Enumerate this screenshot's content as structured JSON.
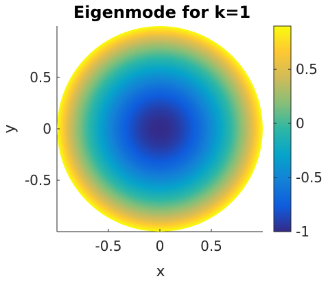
{
  "chart_data": {
    "type": "heatmap",
    "subtype": "filled-contour on unit disk",
    "title": "Eigenmode for k=1",
    "xlabel": "x",
    "ylabel": "y",
    "xlim": [
      -1,
      1
    ],
    "ylim": [
      -1,
      1
    ],
    "xticks": [
      -0.5,
      0,
      0.5
    ],
    "xtick_labels": [
      "-0.5",
      "0",
      "0.5"
    ],
    "yticks": [
      -0.5,
      0,
      0.5
    ],
    "ytick_labels": [
      "-0.5",
      "0",
      "0.5"
    ],
    "grid": false,
    "domain": "unit disk",
    "radial_profile": {
      "r": [
        0.0,
        0.1,
        0.2,
        0.3,
        0.4,
        0.5,
        0.6,
        0.7,
        0.8,
        0.9,
        1.0
      ],
      "value": [
        -1.0,
        -0.98,
        -0.91,
        -0.8,
        -0.66,
        -0.48,
        -0.27,
        -0.05,
        0.2,
        0.48,
        0.88
      ]
    },
    "colorbar": {
      "colormap": "parula",
      "range": [
        -1,
        0.9
      ],
      "ticks": [
        -1,
        -0.5,
        0,
        0.5
      ],
      "tick_labels": [
        "-1",
        "-0.5",
        "0",
        "0.5"
      ],
      "position": "right"
    },
    "colormap_stops": [
      "#352a87",
      "#0f5cdd",
      "#1481d6",
      "#06a4ca",
      "#2eb7a4",
      "#87bf77",
      "#d1bb59",
      "#fec832",
      "#f9fb0e"
    ]
  }
}
